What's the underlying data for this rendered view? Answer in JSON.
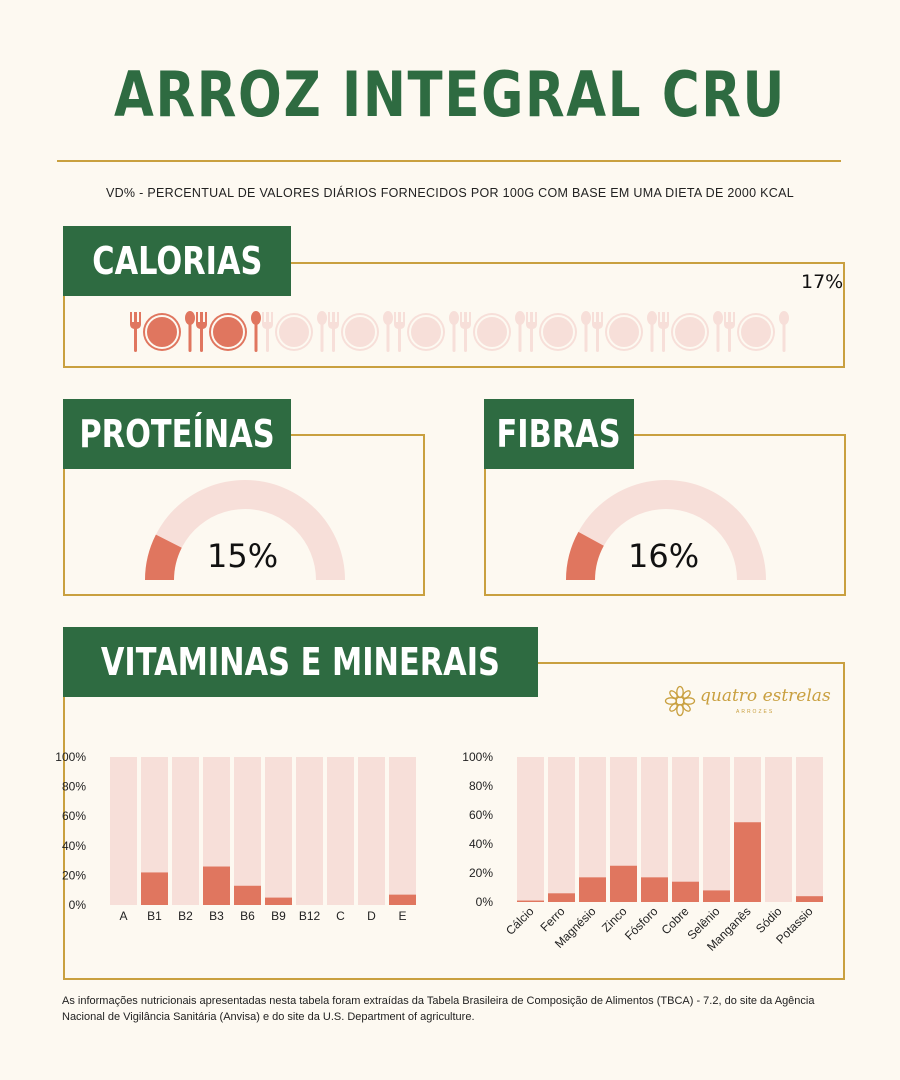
{
  "title": "ARROZ INTEGRAL CRU",
  "subtitle": "VD% - PERCENTUAL DE VALORES DIÁRIOS FORNECIDOS POR 100G COM BASE EM UMA DIETA DE 2000 KCAL",
  "calories": {
    "label": "CALORIAS",
    "value_text": "17%",
    "value": 17,
    "icon_name": "plate-cutlery-icon",
    "icons_total": 10,
    "icons_filled": 2
  },
  "proteins": {
    "label": "PROTEÍNAS",
    "value_text": "15%",
    "value": 15
  },
  "fibers": {
    "label": "FIBRAS",
    "value_text": "16%",
    "value": 16
  },
  "vitamins_section": {
    "label": "VITAMINAS E MINERAIS"
  },
  "logo": {
    "text": "quatro estrelas",
    "sub": "ARROZES",
    "icon": "flower-ornament-icon"
  },
  "colors": {
    "green": "#2e6b41",
    "gold": "#c9a040",
    "accent": "#e0765f",
    "light": "#f7dfd9",
    "background": "#fdf9f1"
  },
  "chart_data": [
    {
      "type": "bar",
      "categories": [
        "A",
        "B1",
        "B2",
        "B3",
        "B6",
        "B9",
        "B12",
        "C",
        "D",
        "E"
      ],
      "values": [
        0,
        22,
        0,
        26,
        13,
        5,
        0,
        0,
        0,
        7
      ],
      "ylim": [
        0,
        100
      ],
      "yticks": [
        "0%",
        "20%",
        "40%",
        "60%",
        "80%",
        "100%"
      ],
      "grid": false
    },
    {
      "type": "bar",
      "categories": [
        "Cálcio",
        "Ferro",
        "Magnésio",
        "Zinco",
        "Fósforo",
        "Cobre",
        "Selênio",
        "Manganês",
        "Sódio",
        "Potassio"
      ],
      "values": [
        1,
        6,
        17,
        25,
        17,
        14,
        8,
        55,
        0,
        4
      ],
      "ylim": [
        0,
        100
      ],
      "yticks": [
        "0%",
        "20%",
        "40%",
        "60%",
        "80%",
        "100%"
      ],
      "grid": false
    }
  ],
  "footer": "As informações nutricionais apresentadas nesta tabela foram extraídas da Tabela Brasileira de Composição de Alimentos (TBCA) - 7.2, do site da Agência Nacional de Vigilância Sanitária (Anvisa) e do site da U.S. Department of agriculture."
}
